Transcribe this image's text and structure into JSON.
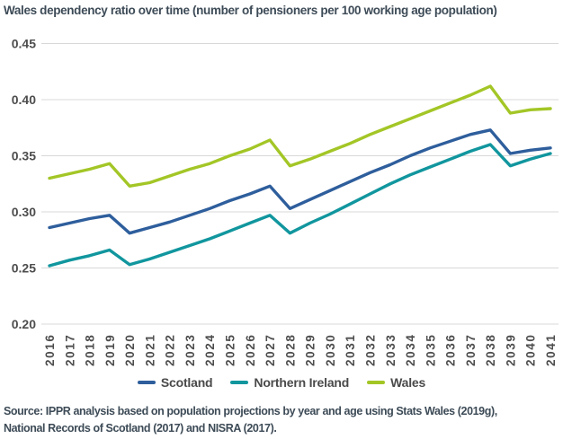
{
  "chart_data": {
    "type": "line",
    "title": "Wales dependency ratio over time (number of pensioners per 100 working age population)",
    "xlabel": "",
    "ylabel": "",
    "x": [
      2016,
      2017,
      2018,
      2019,
      2020,
      2021,
      2022,
      2023,
      2024,
      2025,
      2026,
      2027,
      2028,
      2029,
      2030,
      2031,
      2032,
      2033,
      2034,
      2035,
      2036,
      2037,
      2038,
      2039,
      2040,
      2041
    ],
    "ylim": [
      0.2,
      0.45
    ],
    "yticks": [
      "0.20",
      "0.25",
      "0.30",
      "0.35",
      "0.40",
      "0.45"
    ],
    "grid": "horizontal-only",
    "legend_position": "bottom-center",
    "series": [
      {
        "name": "Scotland",
        "color": "#2e5e9c",
        "values": [
          0.286,
          0.29,
          0.294,
          0.297,
          0.281,
          0.286,
          0.291,
          0.297,
          0.303,
          0.31,
          0.316,
          0.323,
          0.303,
          0.311,
          0.319,
          0.327,
          0.335,
          0.342,
          0.35,
          0.357,
          0.363,
          0.369,
          0.373,
          0.352,
          0.355,
          0.357
        ]
      },
      {
        "name": "Northern Ireland",
        "color": "#11969e",
        "values": [
          0.252,
          0.257,
          0.261,
          0.266,
          0.253,
          0.258,
          0.264,
          0.27,
          0.276,
          0.283,
          0.29,
          0.297,
          0.281,
          0.29,
          0.298,
          0.307,
          0.316,
          0.325,
          0.333,
          0.34,
          0.347,
          0.354,
          0.36,
          0.341,
          0.347,
          0.352
        ]
      },
      {
        "name": "Wales",
        "color": "#a3c626",
        "values": [
          0.33,
          0.334,
          0.338,
          0.343,
          0.323,
          0.326,
          0.332,
          0.338,
          0.343,
          0.35,
          0.356,
          0.364,
          0.341,
          0.347,
          0.354,
          0.361,
          0.369,
          0.376,
          0.383,
          0.39,
          0.397,
          0.404,
          0.412,
          0.388,
          0.391,
          0.392
        ]
      }
    ]
  },
  "source": {
    "line1": "Source: IPPR analysis based on population projections by year and age using Stats Wales (2019g),",
    "line2": "National Records of Scotland (2017) and NISRA (2017)."
  },
  "colors": {
    "title_text": "#3d4b57",
    "tick_text": "#4d4d4d",
    "legend_text": "#4a4a4a",
    "source_text": "#3d4b57",
    "gridline": "#d8d8d8",
    "background": "#ffffff"
  }
}
